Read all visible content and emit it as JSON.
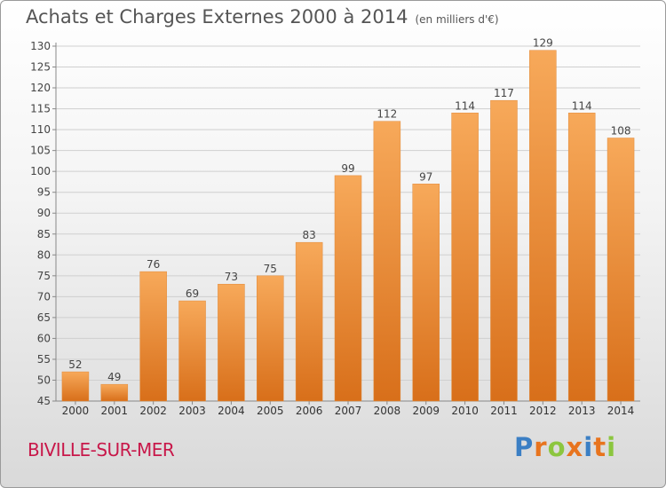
{
  "header": {
    "title": "Achats et Charges Externes 2000 à 2014",
    "unit": "(en milliers d'€)"
  },
  "footer": {
    "city": "BIVILLE-SUR-MER",
    "logo": "Proxiti"
  },
  "colors": {
    "bar_top": "#f7a95a",
    "bar_bottom": "#d86f1a",
    "city": "#c8184a",
    "logo_letters": [
      "#3b7fc4",
      "#e8741e",
      "#8cc63f",
      "#e8741e",
      "#3b7fc4",
      "#e8741e",
      "#8cc63f"
    ]
  },
  "chart_data": {
    "type": "bar",
    "title": "Achats et Charges Externes 2000 à 2014",
    "subtitle": "(en milliers d'€)",
    "categories": [
      "2000",
      "2001",
      "2002",
      "2003",
      "2004",
      "2005",
      "2006",
      "2007",
      "2008",
      "2009",
      "2010",
      "2011",
      "2012",
      "2013",
      "2014"
    ],
    "values": [
      52,
      49,
      76,
      69,
      73,
      75,
      83,
      99,
      112,
      97,
      114,
      117,
      129,
      114,
      108
    ],
    "ylim": [
      45,
      130
    ],
    "yticks": [
      45,
      50,
      55,
      60,
      65,
      70,
      75,
      80,
      85,
      90,
      95,
      100,
      105,
      110,
      115,
      120,
      125,
      130
    ],
    "grid": true,
    "legend": "none"
  }
}
